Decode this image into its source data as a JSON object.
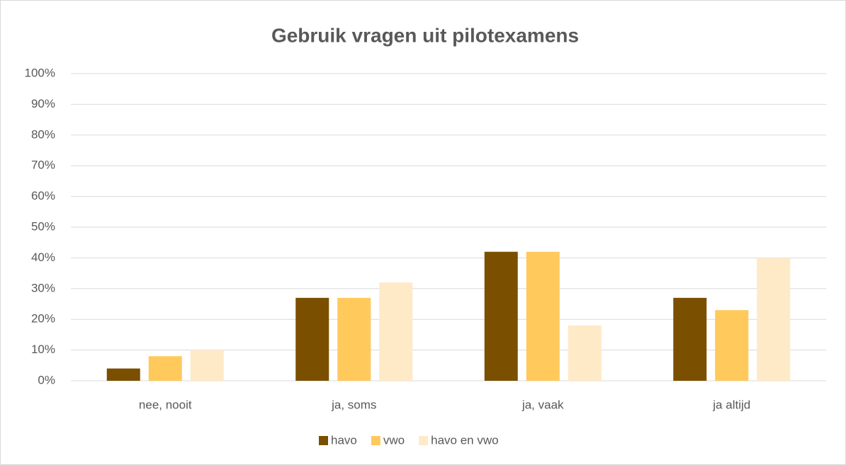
{
  "chart_data": {
    "type": "bar",
    "title": "Gebruik vragen uit pilotexamens",
    "categories": [
      "nee, nooit",
      "ja, soms",
      "ja, vaak",
      "ja altijd"
    ],
    "series": [
      {
        "name": "havo",
        "color": "#7b4f00",
        "values": [
          4,
          27,
          42,
          27
        ]
      },
      {
        "name": "vwo",
        "color": "#ffc95c",
        "values": [
          8,
          27,
          42,
          23
        ]
      },
      {
        "name": "havo en vwo",
        "color": "#ffeac7",
        "values": [
          10,
          32,
          18,
          40
        ]
      }
    ],
    "ylim": [
      0,
      100
    ],
    "yticks": [
      {
        "value": 0,
        "label": "0%"
      },
      {
        "value": 10,
        "label": "10%"
      },
      {
        "value": 20,
        "label": "20%"
      },
      {
        "value": 30,
        "label": "30%"
      },
      {
        "value": 40,
        "label": "40%"
      },
      {
        "value": 50,
        "label": "50%"
      },
      {
        "value": 60,
        "label": "60%"
      },
      {
        "value": 70,
        "label": "70%"
      },
      {
        "value": 80,
        "label": "80%"
      },
      {
        "value": 90,
        "label": "90%"
      },
      {
        "value": 100,
        "label": "100%"
      }
    ],
    "grid": true,
    "legend": "bottom"
  }
}
